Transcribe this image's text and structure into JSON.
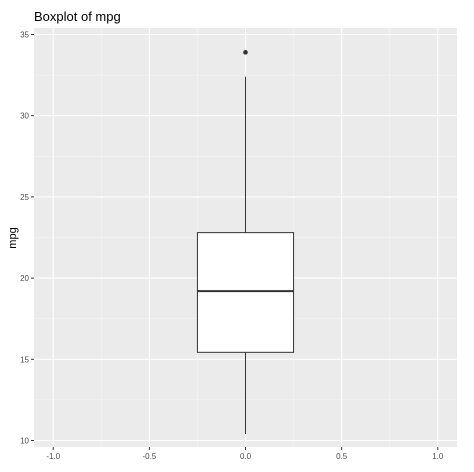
{
  "chart_data": {
    "type": "boxplot",
    "title": "Boxplot of mpg",
    "xlabel": "",
    "ylabel": "mpg",
    "xlim": [
      -1.1,
      1.1
    ],
    "ylim": [
      9.6,
      35.4
    ],
    "x_ticks": [
      -1.0,
      -0.5,
      0.0,
      0.5,
      1.0
    ],
    "x_tick_labels": [
      "-1.0",
      "-0.5",
      "0.0",
      "0.5",
      "1.0"
    ],
    "y_ticks": [
      10,
      15,
      20,
      25,
      30,
      35
    ],
    "y_tick_labels": [
      "10",
      "15",
      "20",
      "25",
      "30",
      "35"
    ],
    "grid": true,
    "box": {
      "x": 0.0,
      "half_width": 0.25,
      "lower_whisker": 10.4,
      "q1": 15.43,
      "median": 19.2,
      "q3": 22.8,
      "upper_whisker": 32.4,
      "outliers": [
        33.9
      ]
    },
    "colors": {
      "panel_background": "#ebebeb",
      "grid_major": "#ffffff",
      "box_fill": "#ffffff",
      "box_line": "#333333"
    }
  }
}
